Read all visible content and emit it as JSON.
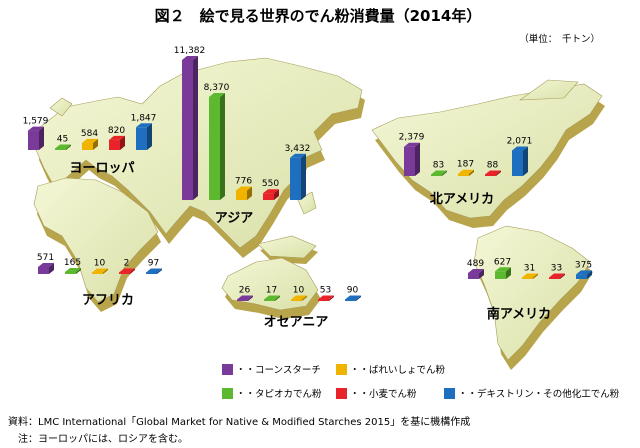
{
  "title": "図２　絵で見る世界のでん粉消費量（2014年）",
  "unit": "（単位：　千トン）",
  "legend": [
    {
      "label": "・・コーンスターチ",
      "color": "#7a3a9a"
    },
    {
      "label": "・・ばれいしょでん粉",
      "color": "#f0b400"
    },
    {
      "label": "・・タピオカでん粉",
      "color": "#5cb82e"
    },
    {
      "label": "・・小麦でん粉",
      "color": "#e8232a"
    },
    {
      "label": "・・デキストリン・その他化工でん粉",
      "color": "#1f6fc0"
    }
  ],
  "footer": {
    "source": "資料：LMC International「Global Market for Native & Modified Starches 2015」を基に機構作成",
    "note": "　注：ヨーロッパには、ロシアを含む。"
  },
  "chart_data": {
    "type": "bar",
    "categories": [
      "ヨーロッパ",
      "アジア",
      "北アメリカ",
      "アフリカ",
      "オセアニア",
      "南アメリカ"
    ],
    "series": [
      {
        "name": "コーンスターチ",
        "values": [
          1579,
          11382,
          2379,
          571,
          26,
          489
        ]
      },
      {
        "name": "タピオカでん粉",
        "values": [
          45,
          8370,
          83,
          165,
          17,
          627
        ]
      },
      {
        "name": "ばれいしょでん粉",
        "values": [
          584,
          776,
          187,
          10,
          10,
          31
        ]
      },
      {
        "name": "小麦でん粉",
        "values": [
          820,
          550,
          88,
          2,
          53,
          33
        ]
      },
      {
        "name": "デキストリン・その他化工でん粉",
        "values": [
          1847,
          3432,
          2071,
          97,
          90,
          375
        ]
      }
    ],
    "value_labels": [
      [
        "1,579",
        "45",
        "584",
        "820",
        "1,847"
      ],
      [
        "11,382",
        "8,370",
        "776",
        "550",
        "3,432"
      ],
      [
        "2,379",
        "83",
        "187",
        "88",
        "2,071"
      ],
      [
        "571",
        "165",
        "10",
        "2",
        "97"
      ],
      [
        "26",
        "17",
        "10",
        "53",
        "90"
      ],
      [
        "489",
        "627",
        "31",
        "33",
        "375"
      ]
    ],
    "unit": "千トン"
  }
}
